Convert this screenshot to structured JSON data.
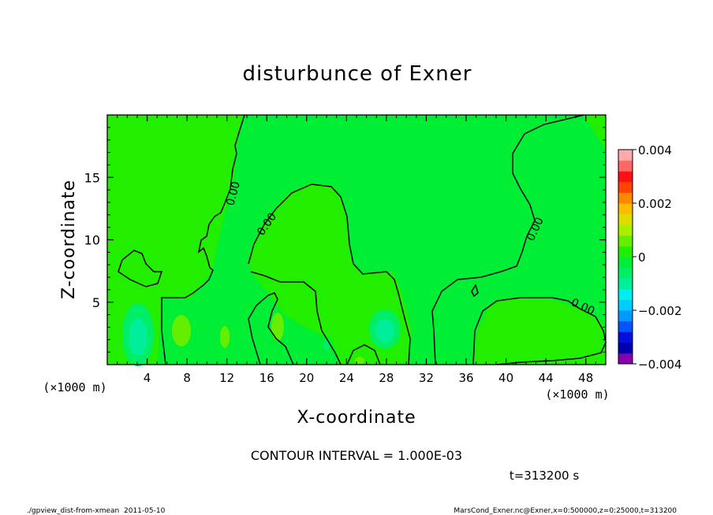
{
  "chart_data": {
    "type": "heatmap",
    "title": "disturbunce of Exner",
    "xlabel": "X-coordinate",
    "ylabel": "Z-coordinate",
    "x_units": "(×1000 m)",
    "z_units": "(×1000 m)",
    "xlim": [
      0,
      50
    ],
    "ylim": [
      0,
      20
    ],
    "x_ticks": [
      "4",
      "8",
      "12",
      "16",
      "20",
      "24",
      "28",
      "32",
      "36",
      "40",
      "44",
      "48"
    ],
    "y_ticks": [
      "5",
      "10",
      "15"
    ],
    "colorbar": {
      "ticks": [
        "0.004",
        "0.002",
        "0",
        "−0.002",
        "−0.004"
      ],
      "range": [
        -0.004,
        0.004
      ],
      "colors": [
        "#8800aa",
        "#0000aa",
        "#0011dd",
        "#0055ff",
        "#0099ff",
        "#00ccff",
        "#00eeee",
        "#00ee99",
        "#00ee66",
        "#00ee33",
        "#22ee00",
        "#66ee00",
        "#aaee00",
        "#dddd00",
        "#ffbb00",
        "#ff8800",
        "#ff4400",
        "#ff1111",
        "#ff6666",
        "#ffaaaa"
      ]
    },
    "contour_labels": [
      "0.00",
      "0.00",
      "0.00",
      "0.00"
    ],
    "contour_interval_text": "CONTOUR INTERVAL = 1.000E-03",
    "time_text": "t=313200 s"
  },
  "footer": {
    "left": "./gpview_dist-from-xmean  2011-05-10",
    "right": "MarsCond_Exner.nc@Exner,x=0:500000,z=0:25000,t=313200"
  },
  "colors": {
    "base_green": "#00ee33",
    "lighter_green": "#22ee00",
    "yellow_green": "#66ee00",
    "cyan_green": "#00ee66",
    "light_cyan": "#00ee99"
  }
}
